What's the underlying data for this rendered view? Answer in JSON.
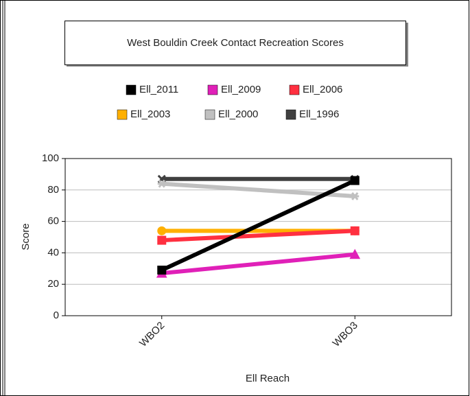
{
  "chart_data": {
    "type": "line",
    "title": "West Bouldin Creek Contact Recreation Scores",
    "x_label": "Ell Reach",
    "y_label": "Score",
    "categories": [
      "WBO2",
      "WBO3"
    ],
    "series": [
      {
        "name": "Ell_2011",
        "color": "#000000",
        "marker": "square",
        "values": [
          29,
          86
        ]
      },
      {
        "name": "Ell_2009",
        "color": "#e020b8",
        "marker": "triangle",
        "values": [
          27,
          39
        ]
      },
      {
        "name": "Ell_2006",
        "color": "#ff3040",
        "marker": "square",
        "values": [
          48,
          54
        ]
      },
      {
        "name": "Ell_2003",
        "color": "#ffb000",
        "marker": "circle",
        "values": [
          54,
          54
        ]
      },
      {
        "name": "Ell_2000",
        "color": "#c0c0c0",
        "marker": "star",
        "values": [
          84,
          76
        ]
      },
      {
        "name": "Ell_1996",
        "color": "#404040",
        "marker": "x",
        "values": [
          87,
          87
        ]
      }
    ],
    "ylim": [
      0,
      100
    ],
    "yticks": [
      0,
      20,
      40,
      60,
      80,
      100
    ],
    "grid": true
  }
}
